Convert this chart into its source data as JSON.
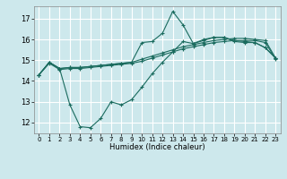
{
  "title": "",
  "xlabel": "Humidex (Indice chaleur)",
  "ylabel": "",
  "bg_color": "#cde8ec",
  "grid_color": "#ffffff",
  "line_color": "#1a6b5e",
  "xlim": [
    -0.5,
    23.5
  ],
  "ylim": [
    11.5,
    17.6
  ],
  "yticks": [
    12,
    13,
    14,
    15,
    16,
    17
  ],
  "xticks": [
    0,
    1,
    2,
    3,
    4,
    5,
    6,
    7,
    8,
    9,
    10,
    11,
    12,
    13,
    14,
    15,
    16,
    17,
    18,
    19,
    20,
    21,
    22,
    23
  ],
  "series": [
    {
      "x": [
        0,
        1,
        2,
        3,
        4,
        5,
        6,
        7,
        8,
        9,
        10,
        11,
        12,
        13,
        14,
        15,
        16,
        17,
        18,
        19,
        20,
        21,
        22,
        23
      ],
      "y": [
        14.3,
        14.9,
        14.6,
        14.65,
        14.65,
        14.7,
        14.75,
        14.8,
        14.85,
        14.9,
        15.85,
        15.9,
        16.3,
        17.35,
        16.7,
        15.8,
        15.95,
        16.1,
        16.1,
        15.95,
        15.9,
        15.85,
        15.6,
        15.1
      ]
    },
    {
      "x": [
        0,
        1,
        2,
        3,
        4,
        5,
        6,
        7,
        8,
        9,
        10,
        11,
        12,
        13,
        14,
        15,
        16,
        17,
        18,
        19,
        20,
        21,
        22,
        23
      ],
      "y": [
        14.3,
        14.9,
        14.6,
        12.85,
        11.8,
        11.75,
        12.2,
        13.0,
        12.85,
        13.1,
        13.7,
        14.35,
        14.9,
        15.4,
        15.9,
        15.8,
        16.0,
        16.1,
        16.1,
        15.9,
        15.85,
        15.85,
        15.6,
        15.1
      ]
    },
    {
      "x": [
        0,
        1,
        2,
        3,
        4,
        5,
        6,
        7,
        8,
        9,
        10,
        11,
        12,
        13,
        14,
        15,
        16,
        17,
        18,
        19,
        20,
        21,
        22,
        23
      ],
      "y": [
        14.3,
        14.9,
        14.6,
        14.65,
        14.65,
        14.7,
        14.75,
        14.8,
        14.85,
        14.9,
        15.05,
        15.2,
        15.35,
        15.5,
        15.65,
        15.75,
        15.85,
        15.95,
        16.0,
        16.05,
        16.05,
        16.0,
        15.95,
        15.1
      ]
    },
    {
      "x": [
        0,
        1,
        2,
        3,
        4,
        5,
        6,
        7,
        8,
        9,
        10,
        11,
        12,
        13,
        14,
        15,
        16,
        17,
        18,
        19,
        20,
        21,
        22,
        23
      ],
      "y": [
        14.3,
        14.85,
        14.55,
        14.6,
        14.6,
        14.65,
        14.7,
        14.75,
        14.8,
        14.85,
        14.95,
        15.1,
        15.25,
        15.4,
        15.55,
        15.65,
        15.75,
        15.85,
        15.9,
        15.95,
        15.95,
        15.95,
        15.85,
        15.05
      ]
    }
  ]
}
